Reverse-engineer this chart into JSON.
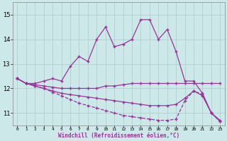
{
  "xlabel": "Windchill (Refroidissement éolien,°C)",
  "xlim": [
    -0.5,
    23.5
  ],
  "ylim": [
    10.5,
    15.5
  ],
  "yticks": [
    11,
    12,
    13,
    14,
    15
  ],
  "xticks": [
    0,
    1,
    2,
    3,
    4,
    5,
    6,
    7,
    8,
    9,
    10,
    11,
    12,
    13,
    14,
    15,
    16,
    17,
    18,
    19,
    20,
    21,
    22,
    23
  ],
  "background_color": "#cce8e8",
  "grid_color": "#aacccc",
  "line_color": "#993399",
  "figsize": [
    3.2,
    2.0
  ],
  "dpi": 100,
  "series": [
    [
      12.4,
      12.2,
      12.2,
      12.3,
      12.4,
      12.3,
      12.9,
      13.3,
      13.1,
      14.0,
      14.5,
      13.7,
      13.8,
      14.0,
      14.8,
      14.8,
      14.0,
      14.4,
      13.5,
      12.3,
      12.3,
      11.8,
      11.0,
      10.7
    ],
    [
      12.4,
      12.2,
      12.15,
      12.1,
      12.05,
      12.0,
      12.0,
      12.0,
      12.0,
      12.0,
      12.1,
      12.1,
      12.15,
      12.2,
      12.2,
      12.2,
      12.2,
      12.2,
      12.2,
      12.2,
      12.2,
      12.2,
      12.2,
      12.2
    ],
    [
      12.4,
      12.2,
      12.1,
      12.0,
      11.85,
      11.7,
      11.55,
      11.4,
      11.3,
      11.2,
      11.1,
      11.0,
      10.9,
      10.85,
      10.8,
      10.75,
      10.7,
      10.7,
      10.75,
      11.5,
      11.9,
      11.75,
      11.0,
      10.65
    ],
    [
      12.4,
      12.2,
      12.1,
      12.0,
      11.9,
      11.8,
      11.75,
      11.7,
      11.65,
      11.6,
      11.55,
      11.5,
      11.45,
      11.4,
      11.35,
      11.3,
      11.3,
      11.3,
      11.35,
      11.6,
      11.9,
      11.7,
      11.0,
      10.65
    ]
  ],
  "linestyles": [
    "-",
    "-",
    "--",
    "-"
  ],
  "linewidths": [
    0.9,
    0.9,
    0.9,
    0.9
  ]
}
